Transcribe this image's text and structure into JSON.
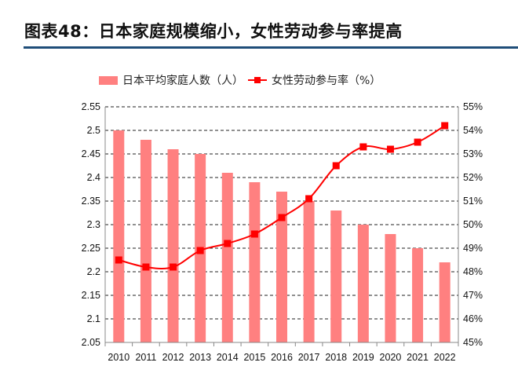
{
  "title": "图表48：日本家庭规模缩小，女性劳动参与率提高",
  "chart_data": {
    "type": "bar+line",
    "categories": [
      "2010",
      "2011",
      "2012",
      "2013",
      "2014",
      "2015",
      "2016",
      "2017",
      "2018",
      "2019",
      "2020",
      "2021",
      "2022"
    ],
    "series": [
      {
        "name": "日本平均家庭人数（人）",
        "type": "bar",
        "axis": "left",
        "color": "#ff8080",
        "values": [
          2.5,
          2.48,
          2.46,
          2.45,
          2.41,
          2.39,
          2.37,
          2.35,
          2.33,
          2.3,
          2.28,
          2.25,
          2.22
        ]
      },
      {
        "name": "女性劳动参与率（%）",
        "type": "line",
        "axis": "right",
        "color": "#ff0000",
        "marker": "square",
        "smooth": true,
        "values": [
          48.5,
          48.2,
          48.2,
          48.9,
          49.2,
          49.6,
          50.3,
          51.1,
          52.5,
          53.3,
          53.2,
          53.5,
          54.2
        ]
      }
    ],
    "y_left": {
      "range": [
        2.05,
        2.55
      ],
      "ticks": [
        "2.05",
        "2.1",
        "2.15",
        "2.2",
        "2.25",
        "2.3",
        "2.35",
        "2.4",
        "2.45",
        "2.5",
        "2.55"
      ]
    },
    "y_right": {
      "range": [
        45,
        55
      ],
      "ticks": [
        "45%",
        "46%",
        "47%",
        "48%",
        "49%",
        "50%",
        "51%",
        "52%",
        "53%",
        "54%",
        "55%"
      ]
    },
    "grid": "horizontal dashed",
    "legend": "top"
  }
}
